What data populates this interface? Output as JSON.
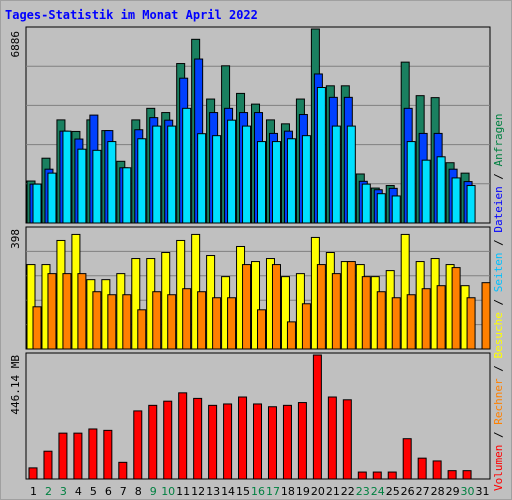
{
  "title": "Tages-Statistik im Monat April 2022",
  "legend": [
    {
      "label": "Anfragen",
      "color": "#008040"
    },
    {
      "label": "Dateien",
      "color": "#0000ff"
    },
    {
      "label": "Seiten",
      "color": "#00c0ff"
    },
    {
      "label": "Besuche",
      "color": "#ffff00"
    },
    {
      "label": "Rechner",
      "color": "#ff8000"
    },
    {
      "label": "Volumen",
      "color": "#ff0000"
    }
  ],
  "legend_separator": "/",
  "colors": {
    "background": "#c0c0c0",
    "title": "#0000ff",
    "weekday_label": "#000000",
    "weekend_label": "#008040",
    "anfragen": "#1a8060",
    "dateien": "#0040ff",
    "seiten": "#00e0ff",
    "besuche": "#ffff00",
    "rechner": "#ff8c00",
    "volumen": "#ff0000"
  },
  "chart_data": {
    "type": "bar",
    "title": "Tages-Statistik im Monat April 2022",
    "categories": [
      "1",
      "2",
      "3",
      "4",
      "5",
      "6",
      "7",
      "8",
      "9",
      "10",
      "11",
      "12",
      "13",
      "14",
      "15",
      "16",
      "17",
      "18",
      "19",
      "20",
      "21",
      "22",
      "23",
      "24",
      "25",
      "26",
      "27",
      "28",
      "29",
      "30",
      "31"
    ],
    "weekend": [
      "2",
      "3",
      "9",
      "10",
      "16",
      "17",
      "23",
      "24",
      "30"
    ],
    "panels": [
      {
        "id": "top",
        "max_label": "6886",
        "ymax": 6886,
        "grid": true,
        "series": [
          {
            "name": "Anfragen",
            "color": "#1a8060",
            "values": [
              1490,
              2300,
              3660,
              3250,
              3660,
              3280,
              2190,
              3660,
              4070,
              3920,
              5660,
              6520,
              4400,
              5580,
              4600,
              4220,
              3660,
              3520,
              4400,
              6886,
              4870,
              4870,
              1740,
              1240,
              1330,
              5710,
              4520,
              4450,
              2140,
              1770,
              null
            ]
          },
          {
            "name": "Dateien",
            "color": "#0040ff",
            "values": [
              1380,
              1910,
              3260,
              2980,
              3830,
              3280,
              1960,
              3310,
              3740,
              3650,
              5140,
              5820,
              3920,
              4070,
              3920,
              3920,
              3180,
              3260,
              3850,
              5290,
              4460,
              4460,
              1480,
              1180,
              1230,
              4070,
              3180,
              3180,
              1910,
              1470,
              null
            ]
          },
          {
            "name": "Seiten",
            "color": "#00e0ff",
            "values": [
              1380,
              1770,
              3260,
              2620,
              2580,
              2890,
              1960,
              2990,
              3440,
              3440,
              4070,
              3170,
              3100,
              3650,
              3440,
              2890,
              2890,
              2990,
              3100,
              4810,
              3440,
              3440,
              1380,
              1040,
              960,
              2890,
              2230,
              2350,
              1600,
              1330,
              null
            ]
          }
        ]
      },
      {
        "id": "middle",
        "max_label": "398",
        "ymax": 398,
        "grid": true,
        "series": [
          {
            "name": "Besuche",
            "color": "#ffff00",
            "values": [
              280,
              280,
              360,
              380,
              230,
              230,
              250,
              300,
              300,
              320,
              360,
              380,
              310,
              240,
              340,
              290,
              300,
              240,
              250,
              370,
              320,
              290,
              280,
              240,
              260,
              380,
              290,
              300,
              280,
              210,
              null
            ]
          },
          {
            "name": "Rechner",
            "color": "#ff8000",
            "values": [
              140,
              250,
              250,
              250,
              190,
              180,
              180,
              130,
              190,
              180,
              200,
              190,
              170,
              170,
              280,
              130,
              280,
              90,
              150,
              280,
              250,
              290,
              240,
              190,
              170,
              180,
              200,
              210,
              270,
              170,
              220
            ]
          }
        ]
      },
      {
        "id": "bottom",
        "max_label": "446.14 MB",
        "ymax": 446.14,
        "grid": false,
        "series": [
          {
            "name": "Volumen",
            "color": "#ff0000",
            "values": [
              40,
              100,
              165,
              165,
              180,
              175,
              60,
              245,
              265,
              280,
              310,
              290,
              265,
              270,
              295,
              270,
              260,
              265,
              275,
              446,
              295,
              285,
              25,
              25,
              25,
              145,
              75,
              65,
              30,
              30,
              null
            ]
          }
        ]
      }
    ]
  }
}
